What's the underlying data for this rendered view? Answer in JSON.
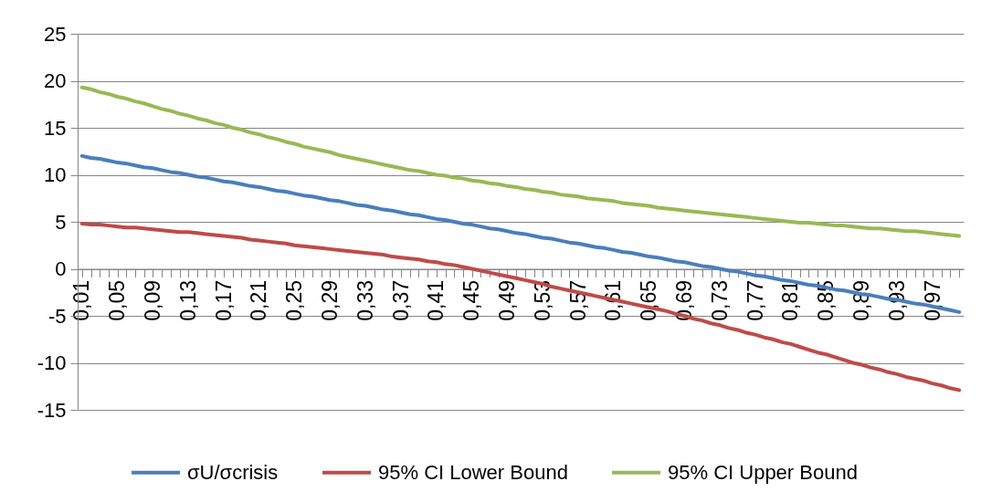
{
  "chart_data": {
    "type": "line",
    "categories": [
      "0,01",
      null,
      null,
      null,
      "0,05",
      null,
      null,
      null,
      "0,09",
      null,
      null,
      null,
      "0,13",
      null,
      null,
      null,
      "0,17",
      null,
      null,
      null,
      "0,21",
      null,
      null,
      null,
      "0,25",
      null,
      null,
      null,
      "0,29",
      null,
      null,
      null,
      "0,33",
      null,
      null,
      null,
      "0,37",
      null,
      null,
      null,
      "0,41",
      null,
      null,
      null,
      "0,45",
      null,
      null,
      null,
      "0,49",
      null,
      null,
      null,
      "0,53",
      null,
      null,
      null,
      "0,57",
      null,
      null,
      null,
      "0,61",
      null,
      null,
      null,
      "0,65",
      null,
      null,
      null,
      "0,69",
      null,
      null,
      null,
      "0,73",
      null,
      null,
      null,
      "0,77",
      null,
      null,
      null,
      "0,81",
      null,
      null,
      null,
      "0,85",
      null,
      null,
      null,
      "0,89",
      null,
      null,
      null,
      "0,93",
      null,
      null,
      null,
      "0,97",
      null,
      null,
      null
    ],
    "series": [
      {
        "name": "σU/σcrisis",
        "color": "#4a7ebb",
        "values": [
          12.0,
          11.8,
          11.7,
          11.5,
          11.3,
          11.2,
          11.0,
          10.8,
          10.7,
          10.5,
          10.3,
          10.2,
          10.0,
          9.8,
          9.7,
          9.5,
          9.3,
          9.2,
          9.0,
          8.8,
          8.7,
          8.5,
          8.3,
          8.2,
          8.0,
          7.8,
          7.7,
          7.5,
          7.3,
          7.2,
          7.0,
          6.8,
          6.7,
          6.5,
          6.3,
          6.2,
          6.0,
          5.8,
          5.7,
          5.5,
          5.3,
          5.2,
          5.0,
          4.8,
          4.7,
          4.5,
          4.3,
          4.2,
          4.0,
          3.8,
          3.7,
          3.5,
          3.3,
          3.2,
          3.0,
          2.8,
          2.7,
          2.5,
          2.3,
          2.2,
          2.0,
          1.8,
          1.7,
          1.5,
          1.3,
          1.2,
          1.0,
          0.8,
          0.7,
          0.5,
          0.3,
          0.2,
          0.0,
          -0.2,
          -0.3,
          -0.5,
          -0.7,
          -0.8,
          -1.0,
          -1.2,
          -1.3,
          -1.5,
          -1.7,
          -1.8,
          -2.0,
          -2.2,
          -2.3,
          -2.5,
          -2.7,
          -2.8,
          -3.0,
          -3.2,
          -3.3,
          -3.5,
          -3.7,
          -3.8,
          -4.0,
          -4.2,
          -4.4,
          -4.6
        ]
      },
      {
        "name": "95% CI Lower Bound",
        "color": "#be4b48",
        "values": [
          4.8,
          4.7,
          4.7,
          4.6,
          4.5,
          4.4,
          4.4,
          4.3,
          4.2,
          4.1,
          4.0,
          3.9,
          3.9,
          3.8,
          3.7,
          3.6,
          3.5,
          3.4,
          3.3,
          3.1,
          3.0,
          2.9,
          2.8,
          2.7,
          2.5,
          2.4,
          2.3,
          2.2,
          2.1,
          2.0,
          1.9,
          1.8,
          1.7,
          1.6,
          1.5,
          1.3,
          1.2,
          1.1,
          1.0,
          0.8,
          0.7,
          0.5,
          0.4,
          0.2,
          0.0,
          -0.2,
          -0.4,
          -0.6,
          -0.8,
          -1.0,
          -1.2,
          -1.4,
          -1.6,
          -1.9,
          -2.1,
          -2.3,
          -2.5,
          -2.7,
          -2.9,
          -3.1,
          -3.3,
          -3.5,
          -3.7,
          -3.9,
          -4.1,
          -4.3,
          -4.5,
          -4.8,
          -5.0,
          -5.3,
          -5.5,
          -5.8,
          -6.0,
          -6.3,
          -6.5,
          -6.8,
          -7.0,
          -7.3,
          -7.5,
          -7.8,
          -8.0,
          -8.3,
          -8.6,
          -8.9,
          -9.1,
          -9.4,
          -9.7,
          -10.0,
          -10.2,
          -10.5,
          -10.7,
          -11.0,
          -11.2,
          -11.5,
          -11.7,
          -11.9,
          -12.2,
          -12.4,
          -12.7,
          -12.9
        ]
      },
      {
        "name": "95% CI Upper Bound",
        "color": "#98b954",
        "values": [
          19.3,
          19.1,
          18.8,
          18.6,
          18.3,
          18.1,
          17.8,
          17.6,
          17.3,
          17.0,
          16.8,
          16.5,
          16.3,
          16.0,
          15.8,
          15.5,
          15.3,
          15.0,
          14.8,
          14.5,
          14.3,
          14.0,
          13.8,
          13.5,
          13.3,
          13.0,
          12.8,
          12.6,
          12.4,
          12.1,
          11.9,
          11.7,
          11.5,
          11.3,
          11.1,
          10.9,
          10.7,
          10.5,
          10.4,
          10.2,
          10.0,
          9.9,
          9.7,
          9.6,
          9.4,
          9.3,
          9.1,
          9.0,
          8.8,
          8.7,
          8.5,
          8.4,
          8.2,
          8.1,
          7.9,
          7.8,
          7.7,
          7.5,
          7.4,
          7.3,
          7.2,
          7.0,
          6.9,
          6.8,
          6.7,
          6.5,
          6.4,
          6.3,
          6.2,
          6.1,
          6.0,
          5.9,
          5.8,
          5.7,
          5.6,
          5.5,
          5.4,
          5.3,
          5.2,
          5.1,
          5.0,
          4.9,
          4.9,
          4.8,
          4.7,
          4.6,
          4.6,
          4.5,
          4.4,
          4.3,
          4.3,
          4.2,
          4.1,
          4.0,
          4.0,
          3.9,
          3.8,
          3.7,
          3.6,
          3.5
        ]
      }
    ],
    "ylim": [
      -15,
      25
    ],
    "yticks": [
      -15,
      -10,
      -5,
      0,
      5,
      10,
      15,
      20,
      25
    ],
    "grid": "y",
    "legend": "bottom"
  }
}
